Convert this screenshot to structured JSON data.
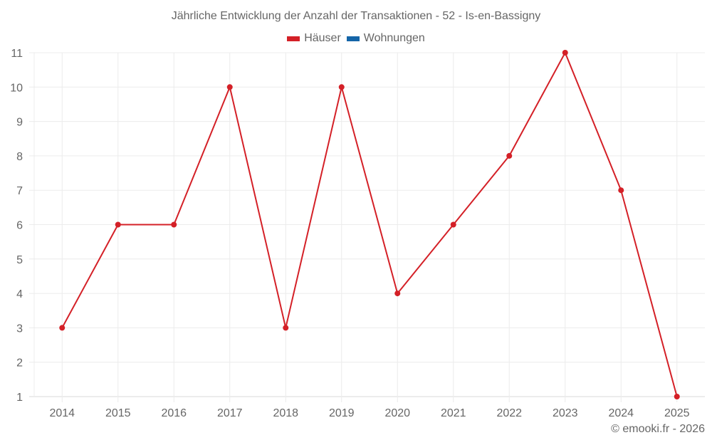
{
  "chart_data": {
    "type": "line",
    "title": "Jährliche Entwicklung der Anzahl der Transaktionen - 52 - Is-en-Bassigny",
    "categories": [
      "2014",
      "2015",
      "2016",
      "2017",
      "2018",
      "2019",
      "2020",
      "2021",
      "2022",
      "2023",
      "2024",
      "2025"
    ],
    "series": [
      {
        "name": "Häuser",
        "color": "#d42027",
        "values": [
          3,
          6,
          6,
          10,
          3,
          10,
          4,
          6,
          8,
          11,
          7,
          1
        ]
      },
      {
        "name": "Wohnungen",
        "color": "#1465a8",
        "values": []
      }
    ],
    "xlabel": "",
    "ylabel": "",
    "ylim": [
      1,
      11
    ],
    "yticks": [
      1,
      2,
      3,
      4,
      5,
      6,
      7,
      8,
      9,
      10,
      11
    ],
    "grid": true,
    "legend_position": "top"
  },
  "legend": [
    {
      "label": "Häuser",
      "color": "#d42027"
    },
    {
      "label": "Wohnungen",
      "color": "#1465a8"
    }
  ],
  "credit": "© emooki.fr - 2026"
}
